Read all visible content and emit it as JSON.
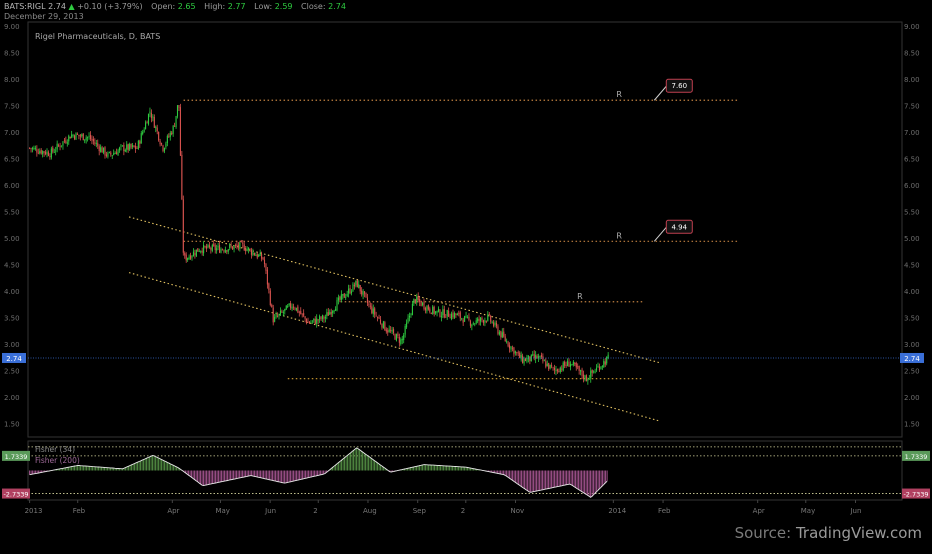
{
  "header": {
    "symbol": "BATS:RIGL",
    "last": "2.74",
    "change_arrow": "▲",
    "change": "+0.10 (+3.79%)",
    "open_label": "Open:",
    "open": "2.65",
    "high_label": "High:",
    "high": "2.77",
    "low_label": "Low:",
    "low": "2.59",
    "close_label": "Close:",
    "close": "2.74",
    "date": "December 29, 2013"
  },
  "source": {
    "prefix": "Source: ",
    "site": "TradingView.com"
  },
  "colors": {
    "background": "#000000",
    "up_candle": "#2ecc40",
    "down_candle": "#d9534f",
    "trendline": "#e0c060",
    "support_line": "#d4a030",
    "resistance_line": "#c08040",
    "last_price_line": "#3a6fd8",
    "osc_up": "#5a9a4a",
    "osc_down": "#b05a9a",
    "osc_band": "#d9d9a0"
  },
  "chart_data": {
    "type": "candlestick",
    "title": "Rigel Pharmaceuticals, D, BATS",
    "price_axis": {
      "ylim": [
        1.25,
        9.0
      ],
      "ticks": [
        "9.00",
        "8.50",
        "8.00",
        "7.50",
        "7.00",
        "6.50",
        "6.00",
        "5.50",
        "5.00",
        "4.50",
        "4.00",
        "3.50",
        "3.00",
        "2.50",
        "2.00",
        "1.50"
      ]
    },
    "time_axis": {
      "labels": [
        "2013",
        "Feb",
        "Apr",
        "May",
        "Jun",
        "2",
        "Aug",
        "Sep",
        "2",
        "Nov",
        "2014",
        "Feb",
        "Apr",
        "May",
        "Jun"
      ]
    },
    "last_price": {
      "value": 2.74,
      "label": "2.74"
    },
    "price_path": [
      [
        "2013-01-02",
        6.7
      ],
      [
        "2013-01-15",
        6.6
      ],
      [
        "2013-01-28",
        6.95
      ],
      [
        "2013-02-08",
        6.9
      ],
      [
        "2013-02-20",
        6.55
      ],
      [
        "2013-03-01",
        6.7
      ],
      [
        "2013-03-10",
        6.7
      ],
      [
        "2013-03-18",
        7.4
      ],
      [
        "2013-03-26",
        6.7
      ],
      [
        "2013-04-02",
        7.1
      ],
      [
        "2013-04-05",
        7.6
      ],
      [
        "2013-04-08",
        4.6
      ],
      [
        "2013-04-18",
        4.8
      ],
      [
        "2013-05-01",
        4.8
      ],
      [
        "2013-05-15",
        4.85
      ],
      [
        "2013-05-28",
        4.6
      ],
      [
        "2013-06-03",
        3.45
      ],
      [
        "2013-06-15",
        3.75
      ],
      [
        "2013-06-25",
        3.4
      ],
      [
        "2013-07-05",
        3.5
      ],
      [
        "2013-07-15",
        3.85
      ],
      [
        "2013-07-25",
        4.15
      ],
      [
        "2013-08-02",
        3.7
      ],
      [
        "2013-08-12",
        3.3
      ],
      [
        "2013-08-22",
        3.05
      ],
      [
        "2013-08-30",
        3.85
      ],
      [
        "2013-09-12",
        3.6
      ],
      [
        "2013-09-25",
        3.55
      ],
      [
        "2013-10-05",
        3.4
      ],
      [
        "2013-10-15",
        3.5
      ],
      [
        "2013-10-25",
        3.1
      ],
      [
        "2013-11-05",
        2.7
      ],
      [
        "2013-11-15",
        2.75
      ],
      [
        "2013-11-25",
        2.5
      ],
      [
        "2013-12-05",
        2.65
      ],
      [
        "2013-12-15",
        2.35
      ],
      [
        "2013-12-22",
        2.55
      ],
      [
        "2013-12-29",
        2.74
      ]
    ],
    "levels": [
      {
        "name": "R",
        "value": 7.6,
        "label": "7.60",
        "kind": "resistance",
        "from": "2013-04-08",
        "to": "2014-03-20"
      },
      {
        "name": "R",
        "value": 4.94,
        "label": "4.94",
        "kind": "resistance",
        "from": "2013-04-08",
        "to": "2014-03-20"
      },
      {
        "name": "R",
        "value": 3.8,
        "label": "",
        "kind": "resistance",
        "from": "2013-07-15",
        "to": "2014-01-20"
      },
      {
        "name": "",
        "value": 2.35,
        "label": "",
        "kind": "support",
        "from": "2013-06-12",
        "to": "2014-01-20"
      }
    ],
    "channel": [
      {
        "from": [
          "2013-03-05",
          5.4
        ],
        "to": [
          "2014-01-30",
          2.65
        ]
      },
      {
        "from": [
          "2013-03-05",
          4.35
        ],
        "to": [
          "2014-01-30",
          1.55
        ]
      }
    ],
    "oscillator": {
      "name": "Fisher (34)",
      "second_name": "Fisher (200)",
      "band_upper": "1.7339",
      "band_lower": "-2.7339",
      "ylim": [
        -3.5,
        3.5
      ],
      "path": [
        [
          "2013-01-02",
          -0.5
        ],
        [
          "2013-02-01",
          0.6
        ],
        [
          "2013-03-01",
          0.2
        ],
        [
          "2013-03-20",
          1.8
        ],
        [
          "2013-04-05",
          0.3
        ],
        [
          "2013-04-20",
          -1.8
        ],
        [
          "2013-05-20",
          -0.6
        ],
        [
          "2013-06-10",
          -1.5
        ],
        [
          "2013-07-05",
          -0.4
        ],
        [
          "2013-07-25",
          2.7
        ],
        [
          "2013-08-15",
          -0.2
        ],
        [
          "2013-09-05",
          0.7
        ],
        [
          "2013-10-01",
          0.4
        ],
        [
          "2013-10-25",
          -0.5
        ],
        [
          "2013-11-10",
          -2.6
        ],
        [
          "2013-12-05",
          -1.6
        ],
        [
          "2013-12-18",
          -3.2
        ],
        [
          "2013-12-29",
          -1.1
        ]
      ]
    }
  }
}
